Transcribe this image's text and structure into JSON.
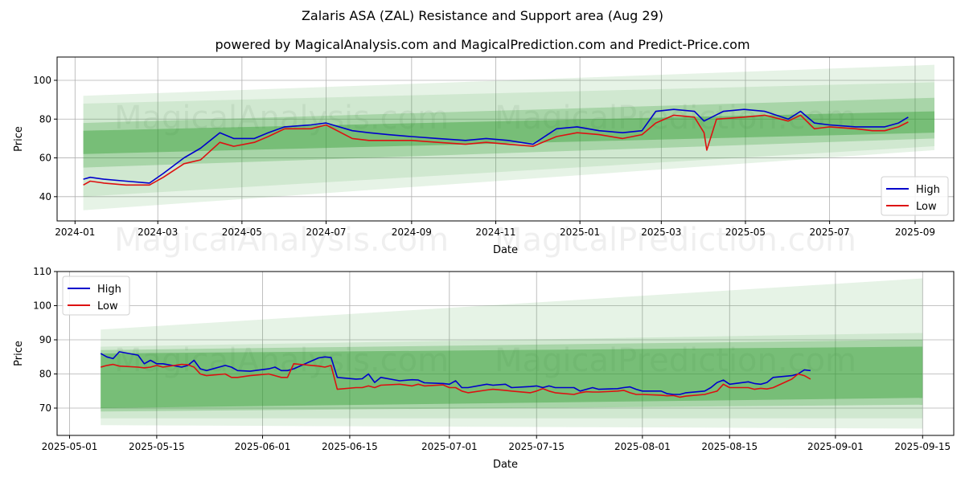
{
  "title": "Zalaris ASA (ZAL) Resistance and Support area (Aug 29)",
  "subtitle": "powered by MagicalAnalysis.com and MagicalPrediction.com and Predict-Price.com",
  "watermarks": [
    "MagicalAnalysis.com",
    "MagicalPrediction.com"
  ],
  "colors": {
    "high": "#0000cc",
    "low": "#dd1111",
    "band": "#2e9a2e"
  },
  "chart_data": [
    {
      "type": "line",
      "xlabel": "Date",
      "ylabel": "Price",
      "xlim": [
        "2023-12-19",
        "2025-09-29"
      ],
      "ylim": [
        27.5,
        112
      ],
      "x_ticks": [
        "2024-01",
        "2024-03",
        "2024-05",
        "2024-07",
        "2024-09",
        "2024-11",
        "2025-01",
        "2025-03",
        "2025-05",
        "2025-07",
        "2025-09"
      ],
      "y_ticks": [
        40,
        60,
        80,
        100
      ],
      "legend": "lower-right",
      "grid": true,
      "band_range": [
        "2024-01-07",
        "2025-09-15"
      ],
      "bands": [
        {
          "lower": [
            33,
            64
          ],
          "upper": [
            92,
            108
          ],
          "opacity": 0.12
        },
        {
          "lower": [
            40,
            66
          ],
          "upper": [
            88,
            99
          ],
          "opacity": 0.12
        },
        {
          "lower": [
            55,
            70
          ],
          "upper": [
            78,
            91
          ],
          "opacity": 0.25
        },
        {
          "lower": [
            62,
            73
          ],
          "upper": [
            74,
            84
          ],
          "opacity": 0.4
        }
      ],
      "series": [
        {
          "name": "High",
          "x": [
            "2024-01-07",
            "2024-01-12",
            "2024-01-22",
            "2024-02-07",
            "2024-02-24",
            "2024-03-05",
            "2024-03-20",
            "2024-04-01",
            "2024-04-15",
            "2024-04-25",
            "2024-05-10",
            "2024-05-20",
            "2024-06-01",
            "2024-06-20",
            "2024-07-01",
            "2024-07-20",
            "2024-08-01",
            "2024-08-15",
            "2024-09-01",
            "2024-09-20",
            "2024-10-10",
            "2024-10-25",
            "2024-11-10",
            "2024-11-28",
            "2024-12-15",
            "2024-12-30",
            "2025-01-15",
            "2025-02-01",
            "2025-02-15",
            "2025-02-25",
            "2025-03-10",
            "2025-03-25",
            "2025-04-01",
            "2025-04-15",
            "2025-04-30",
            "2025-05-15",
            "2025-06-01",
            "2025-06-10",
            "2025-06-20",
            "2025-07-01",
            "2025-07-20",
            "2025-08-01",
            "2025-08-10",
            "2025-08-20",
            "2025-08-27"
          ],
          "values": [
            49,
            50,
            49,
            48,
            47,
            52,
            60,
            65,
            73,
            70,
            70,
            73,
            76,
            77,
            78,
            74,
            73,
            72,
            71,
            70,
            69,
            70,
            69,
            67,
            75,
            76,
            74,
            73,
            74,
            84,
            85,
            84,
            79,
            84,
            85,
            84,
            80,
            84,
            78,
            77,
            76,
            76,
            76,
            78,
            81
          ]
        },
        {
          "name": "Low",
          "x": [
            "2024-01-07",
            "2024-01-12",
            "2024-01-22",
            "2024-02-07",
            "2024-02-24",
            "2024-03-05",
            "2024-03-20",
            "2024-04-01",
            "2024-04-15",
            "2024-04-25",
            "2024-05-10",
            "2024-05-20",
            "2024-06-01",
            "2024-06-20",
            "2024-07-01",
            "2024-07-20",
            "2024-08-01",
            "2024-08-15",
            "2024-09-01",
            "2024-09-20",
            "2024-10-10",
            "2024-10-25",
            "2024-11-10",
            "2024-11-28",
            "2024-12-15",
            "2024-12-30",
            "2025-01-15",
            "2025-02-01",
            "2025-02-15",
            "2025-02-25",
            "2025-03-10",
            "2025-03-25",
            "2025-04-01",
            "2025-04-03",
            "2025-04-10",
            "2025-04-30",
            "2025-05-15",
            "2025-06-01",
            "2025-06-10",
            "2025-06-20",
            "2025-07-01",
            "2025-07-20",
            "2025-08-01",
            "2025-08-10",
            "2025-08-20",
            "2025-08-27"
          ],
          "values": [
            46,
            48,
            47,
            46,
            46,
            50,
            57,
            59,
            68,
            66,
            68,
            71,
            75,
            75,
            77,
            70,
            69,
            69,
            69,
            68,
            67,
            68,
            67,
            66,
            71,
            73,
            72,
            70,
            72,
            78,
            82,
            81,
            73,
            64,
            80,
            81,
            82,
            79,
            82,
            75,
            76,
            75,
            74,
            74,
            76,
            78.5
          ]
        }
      ]
    },
    {
      "type": "line",
      "xlabel": "Date",
      "ylabel": "Price",
      "xlim": [
        "2025-04-29",
        "2025-09-20"
      ],
      "ylim": [
        62,
        110
      ],
      "x_ticks": [
        "2025-05-01",
        "2025-05-15",
        "2025-06-01",
        "2025-06-15",
        "2025-07-01",
        "2025-07-15",
        "2025-08-01",
        "2025-08-15",
        "2025-09-01",
        "2025-09-15"
      ],
      "y_ticks": [
        70,
        80,
        90,
        100,
        110
      ],
      "legend": "upper-left",
      "grid": true,
      "band_range": [
        "2025-05-06",
        "2025-09-15"
      ],
      "bands": [
        {
          "lower": [
            65,
            64
          ],
          "upper": [
            93,
            108
          ],
          "opacity": 0.12
        },
        {
          "lower": [
            67,
            67
          ],
          "upper": [
            88,
            92
          ],
          "opacity": 0.12
        },
        {
          "lower": [
            69,
            71
          ],
          "upper": [
            87,
            90
          ],
          "opacity": 0.25
        },
        {
          "lower": [
            70,
            73
          ],
          "upper": [
            86,
            88
          ],
          "opacity": 0.4
        }
      ],
      "series": [
        {
          "name": "High",
          "x": [
            "2025-05-06",
            "2025-05-07",
            "2025-05-08",
            "2025-05-09",
            "2025-05-12",
            "2025-05-13",
            "2025-05-14",
            "2025-05-15",
            "2025-05-16",
            "2025-05-19",
            "2025-05-20",
            "2025-05-21",
            "2025-05-22",
            "2025-05-23",
            "2025-05-26",
            "2025-05-27",
            "2025-05-28",
            "2025-05-30",
            "2025-06-02",
            "2025-06-03",
            "2025-06-04",
            "2025-06-05",
            "2025-06-06",
            "2025-06-10",
            "2025-06-11",
            "2025-06-12",
            "2025-06-13",
            "2025-06-16",
            "2025-06-17",
            "2025-06-18",
            "2025-06-19",
            "2025-06-20",
            "2025-06-23",
            "2025-06-25",
            "2025-06-26",
            "2025-06-27",
            "2025-06-30",
            "2025-07-01",
            "2025-07-02",
            "2025-07-03",
            "2025-07-04",
            "2025-07-07",
            "2025-07-08",
            "2025-07-10",
            "2025-07-11",
            "2025-07-14",
            "2025-07-15",
            "2025-07-16",
            "2025-07-17",
            "2025-07-18",
            "2025-07-21",
            "2025-07-22",
            "2025-07-23",
            "2025-07-24",
            "2025-07-25",
            "2025-07-28",
            "2025-07-29",
            "2025-07-30",
            "2025-07-31",
            "2025-08-01",
            "2025-08-04",
            "2025-08-05",
            "2025-08-06",
            "2025-08-07",
            "2025-08-08",
            "2025-08-11",
            "2025-08-12",
            "2025-08-13",
            "2025-08-14",
            "2025-08-15",
            "2025-08-18",
            "2025-08-19",
            "2025-08-20",
            "2025-08-21",
            "2025-08-22",
            "2025-08-25",
            "2025-08-26",
            "2025-08-27",
            "2025-08-28"
          ],
          "values": [
            86,
            85,
            84.5,
            86.5,
            85.5,
            83,
            84,
            83,
            83,
            82,
            82.5,
            84,
            81.5,
            81,
            82.5,
            82,
            81,
            80.8,
            81.5,
            82,
            81,
            81,
            81.5,
            84.7,
            85,
            84.8,
            79,
            78.5,
            78.6,
            80,
            77.5,
            79,
            78,
            78.3,
            78.2,
            77.4,
            77.2,
            77,
            78,
            76,
            76,
            77,
            76.7,
            77,
            76,
            76.3,
            76.5,
            76,
            76.5,
            76,
            76,
            75,
            75.5,
            76,
            75.5,
            75.7,
            76,
            76.2,
            75.5,
            75,
            75,
            74.2,
            74,
            74,
            74.5,
            75,
            76,
            77.5,
            78.2,
            77,
            77.7,
            77.2,
            77,
            77.5,
            79,
            79.5,
            80,
            81.2,
            81
          ]
        },
        {
          "name": "Low",
          "x": [
            "2025-05-06",
            "2025-05-07",
            "2025-05-08",
            "2025-05-09",
            "2025-05-12",
            "2025-05-13",
            "2025-05-14",
            "2025-05-15",
            "2025-05-16",
            "2025-05-19",
            "2025-05-20",
            "2025-05-21",
            "2025-05-22",
            "2025-05-23",
            "2025-05-26",
            "2025-05-27",
            "2025-05-28",
            "2025-05-30",
            "2025-06-02",
            "2025-06-03",
            "2025-06-04",
            "2025-06-05",
            "2025-06-06",
            "2025-06-10",
            "2025-06-11",
            "2025-06-12",
            "2025-06-13",
            "2025-06-16",
            "2025-06-17",
            "2025-06-18",
            "2025-06-19",
            "2025-06-20",
            "2025-06-23",
            "2025-06-25",
            "2025-06-26",
            "2025-06-27",
            "2025-06-30",
            "2025-07-01",
            "2025-07-02",
            "2025-07-03",
            "2025-07-04",
            "2025-07-07",
            "2025-07-08",
            "2025-07-10",
            "2025-07-11",
            "2025-07-14",
            "2025-07-15",
            "2025-07-16",
            "2025-07-17",
            "2025-07-18",
            "2025-07-21",
            "2025-07-22",
            "2025-07-23",
            "2025-07-24",
            "2025-07-25",
            "2025-07-28",
            "2025-07-29",
            "2025-07-30",
            "2025-07-31",
            "2025-08-01",
            "2025-08-04",
            "2025-08-05",
            "2025-08-06",
            "2025-08-07",
            "2025-08-08",
            "2025-08-11",
            "2025-08-12",
            "2025-08-13",
            "2025-08-14",
            "2025-08-15",
            "2025-08-18",
            "2025-08-19",
            "2025-08-20",
            "2025-08-21",
            "2025-08-22",
            "2025-08-25",
            "2025-08-26",
            "2025-08-27",
            "2025-08-28"
          ],
          "values": [
            82,
            82.5,
            82.8,
            82.3,
            82,
            81.8,
            82,
            82.5,
            82,
            82.8,
            82.7,
            82,
            80,
            79.5,
            80,
            79,
            79,
            79.5,
            80,
            79.5,
            79,
            79,
            83,
            82.3,
            82,
            82.5,
            75.5,
            76,
            76,
            76.5,
            76,
            76.7,
            77,
            76.5,
            77,
            76.5,
            76.8,
            76,
            76,
            75,
            74.5,
            75.3,
            75.5,
            75.2,
            75,
            74.5,
            75,
            75.7,
            75,
            74.5,
            74,
            74.5,
            74.8,
            74.7,
            74.7,
            75,
            75.2,
            74.5,
            74,
            74,
            73.8,
            73.6,
            73.7,
            73.2,
            73.5,
            74,
            74.5,
            75,
            77,
            76,
            76,
            75.5,
            75.8,
            75.6,
            76,
            78.5,
            80,
            79.5,
            78.5
          ]
        }
      ]
    }
  ]
}
